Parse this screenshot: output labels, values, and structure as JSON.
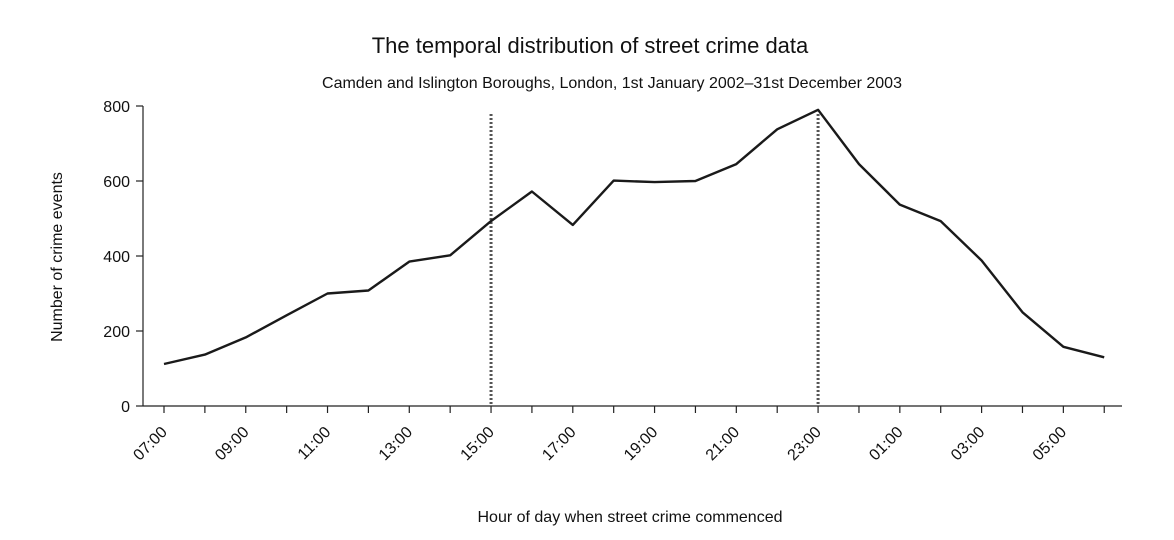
{
  "chart_data": {
    "type": "line",
    "title": "The temporal distribution of street crime data",
    "subtitle": "Camden and Islington Boroughs, London, 1st January 2002–31st December 2003",
    "xlabel": "Hour of day when street crime commenced",
    "ylabel": "Number of crime events",
    "ylim": [
      0,
      800
    ],
    "yticks": [
      0,
      200,
      400,
      600,
      800
    ],
    "xticks": [
      "07:00",
      "09:00",
      "11:00",
      "13:00",
      "15:00",
      "17:00",
      "19:00",
      "21:00",
      "23:00",
      "01:00",
      "03:00",
      "05:00"
    ],
    "hours": [
      "07:00",
      "08:00",
      "09:00",
      "10:00",
      "11:00",
      "12:00",
      "13:00",
      "14:00",
      "15:00",
      "16:00",
      "17:00",
      "18:00",
      "19:00",
      "20:00",
      "21:00",
      "22:00",
      "23:00",
      "00:00",
      "01:00",
      "02:00",
      "03:00",
      "04:00",
      "05:00",
      "06:00"
    ],
    "values": [
      112,
      137,
      183,
      242,
      300,
      308,
      385,
      402,
      493,
      572,
      483,
      601,
      597,
      600,
      645,
      738,
      790,
      645,
      537,
      493,
      388,
      250,
      158,
      130
    ],
    "vertical_markers": [
      "15:00",
      "23:00"
    ],
    "grid": false,
    "legend": "none"
  }
}
